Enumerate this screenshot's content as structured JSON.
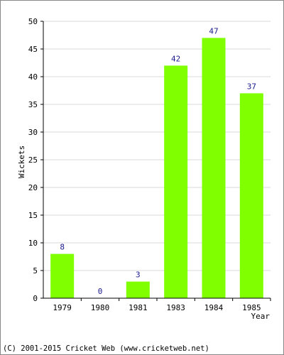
{
  "chart_data": {
    "type": "bar",
    "categories": [
      "1979",
      "1980",
      "1981",
      "1983",
      "1984",
      "1985"
    ],
    "values": [
      8,
      0,
      3,
      42,
      47,
      37
    ],
    "data_labels": [
      "8",
      "0",
      "3",
      "42",
      "47",
      "37"
    ],
    "xlabel": "Year",
    "ylabel": "Wickets",
    "ylim": [
      0,
      50
    ],
    "yticks": [
      0,
      5,
      10,
      15,
      20,
      25,
      30,
      35,
      40,
      45,
      50
    ],
    "grid": true,
    "legend": "none"
  },
  "colors": {
    "bar": "#7fff00",
    "grid": "#d8d8d8",
    "axis": "#000000",
    "data_label": "#1a1a8c"
  },
  "footer": {
    "copyright": "(C) 2001-2015 Cricket Web (www.cricketweb.net)"
  }
}
